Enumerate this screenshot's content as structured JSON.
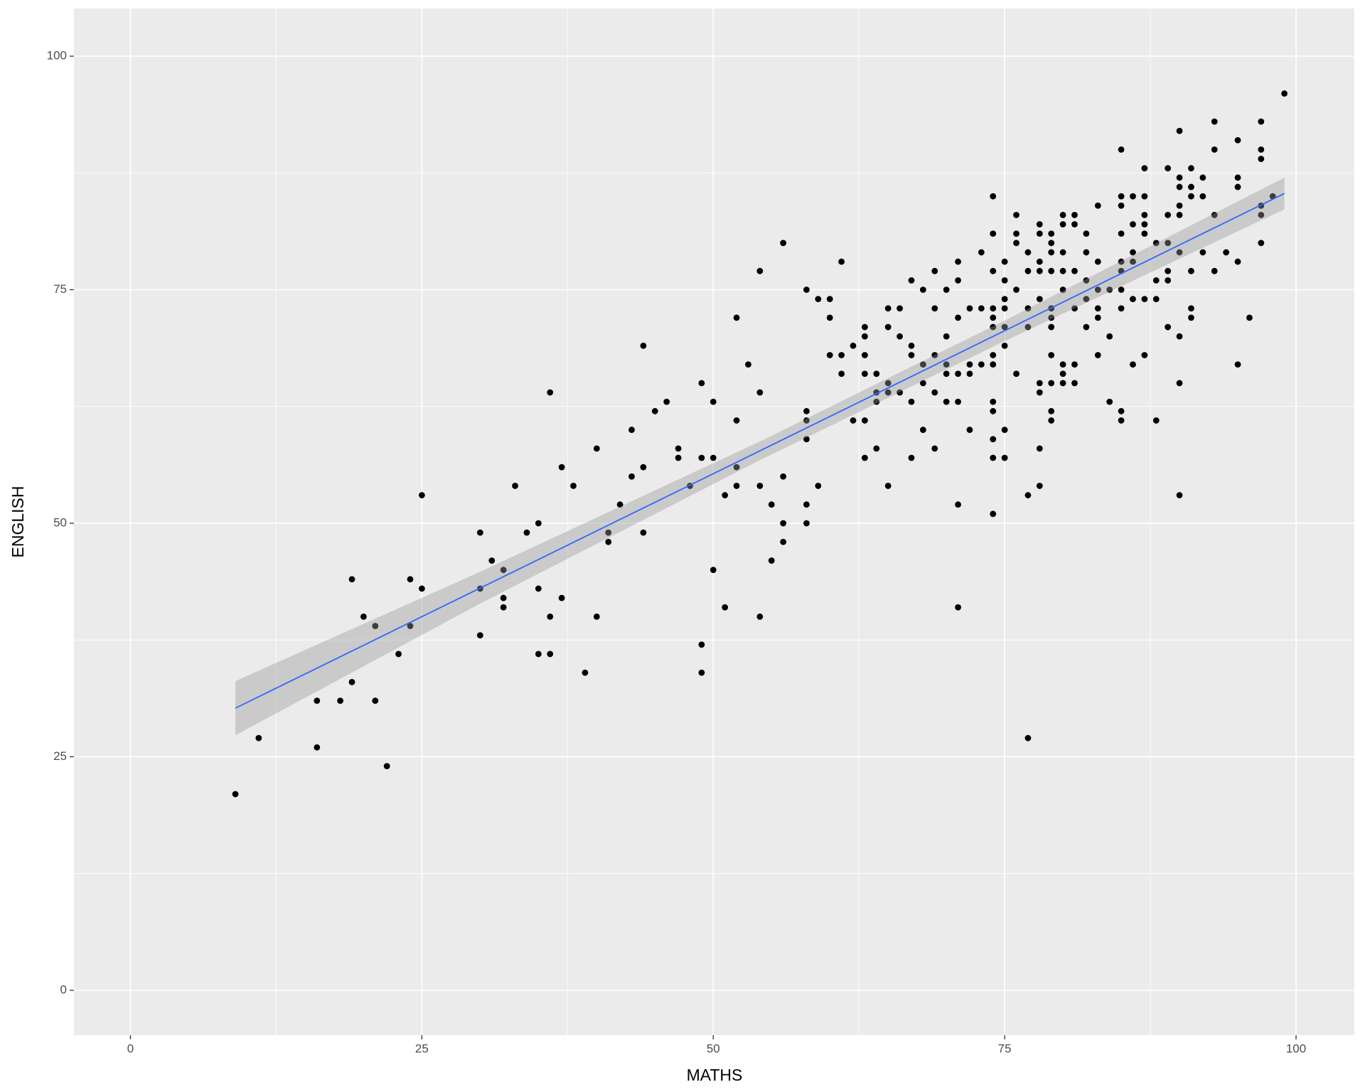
{
  "chart_data": {
    "type": "scatter",
    "x_label": "MATHS",
    "y_label": "ENGLISH",
    "x": [
      9,
      11,
      16,
      16,
      18,
      19,
      19,
      20,
      21,
      21,
      22,
      23,
      24,
      24,
      25,
      25,
      30,
      30,
      30,
      31,
      32,
      32,
      32,
      33,
      34,
      35,
      35,
      35,
      36,
      36,
      36,
      37,
      37,
      38,
      39,
      40,
      40,
      41,
      41,
      42,
      43,
      43,
      44,
      44,
      44,
      45,
      46,
      47,
      47,
      48,
      49,
      49,
      49,
      49,
      50,
      50,
      50,
      51,
      51,
      52,
      52,
      52,
      52,
      53,
      54,
      54,
      54,
      54,
      55,
      55,
      56,
      56,
      56,
      56,
      58,
      58,
      58,
      58,
      58,
      58,
      59,
      59,
      60,
      60,
      60,
      61,
      61,
      61,
      62,
      62,
      63,
      63,
      63,
      63,
      63,
      63,
      64,
      64,
      64,
      64,
      65,
      65,
      65,
      65,
      65,
      66,
      66,
      66,
      67,
      67,
      67,
      67,
      67,
      68,
      68,
      68,
      68,
      69,
      69,
      69,
      69,
      69,
      70,
      70,
      70,
      70,
      70,
      71,
      71,
      71,
      71,
      71,
      71,
      71,
      72,
      72,
      72,
      72,
      73,
      73,
      73,
      74,
      74,
      74,
      74,
      74,
      74,
      74,
      74,
      74,
      74,
      74,
      74,
      74,
      75,
      75,
      75,
      75,
      75,
      75,
      75,
      75,
      76,
      76,
      76,
      76,
      76,
      77,
      77,
      77,
      77,
      77,
      77,
      78,
      78,
      78,
      78,
      78,
      78,
      78,
      78,
      78,
      79,
      79,
      79,
      79,
      79,
      79,
      79,
      79,
      79,
      79,
      79,
      80,
      80,
      80,
      80,
      80,
      80,
      80,
      80,
      81,
      81,
      81,
      81,
      81,
      81,
      82,
      82,
      82,
      82,
      82,
      83,
      83,
      83,
      83,
      83,
      83,
      84,
      84,
      84,
      85,
      85,
      85,
      85,
      85,
      85,
      85,
      85,
      85,
      85,
      86,
      86,
      86,
      86,
      86,
      86,
      87,
      87,
      87,
      87,
      87,
      87,
      87,
      88,
      88,
      88,
      88,
      89,
      89,
      89,
      89,
      89,
      89,
      90,
      90,
      90,
      90,
      90,
      90,
      90,
      90,
      90,
      91,
      91,
      91,
      91,
      91,
      91,
      92,
      92,
      92,
      93,
      93,
      93,
      93,
      94,
      95,
      95,
      95,
      95,
      95,
      96,
      97,
      97,
      97,
      97,
      97,
      97,
      98,
      99
    ],
    "values": [
      21,
      27,
      31,
      26,
      31,
      44,
      33,
      40,
      39,
      31,
      24,
      36,
      44,
      39,
      53,
      43,
      49,
      43,
      38,
      46,
      45,
      42,
      41,
      54,
      49,
      50,
      43,
      36,
      64,
      40,
      36,
      56,
      42,
      54,
      34,
      58,
      40,
      49,
      48,
      52,
      60,
      55,
      69,
      56,
      49,
      62,
      63,
      58,
      57,
      54,
      65,
      57,
      37,
      34,
      63,
      57,
      45,
      53,
      41,
      72,
      61,
      56,
      54,
      67,
      77,
      64,
      54,
      40,
      52,
      46,
      80,
      55,
      50,
      48,
      75,
      62,
      61,
      59,
      52,
      50,
      74,
      54,
      74,
      72,
      68,
      78,
      68,
      66,
      69,
      61,
      71,
      70,
      68,
      66,
      61,
      57,
      64,
      63,
      58,
      66,
      73,
      71,
      65,
      64,
      54,
      73,
      70,
      64,
      76,
      69,
      68,
      63,
      57,
      75,
      67,
      65,
      60,
      77,
      73,
      68,
      64,
      58,
      75,
      70,
      67,
      66,
      63,
      78,
      76,
      72,
      66,
      63,
      52,
      41,
      73,
      67,
      66,
      60,
      79,
      73,
      67,
      85,
      81,
      77,
      73,
      72,
      71,
      68,
      67,
      63,
      62,
      59,
      57,
      51,
      78,
      76,
      74,
      73,
      71,
      69,
      60,
      57,
      83,
      81,
      80,
      75,
      66,
      79,
      77,
      73,
      71,
      53,
      27,
      82,
      81,
      78,
      77,
      74,
      65,
      64,
      58,
      54,
      81,
      80,
      79,
      77,
      73,
      72,
      71,
      68,
      65,
      62,
      61,
      83,
      82,
      79,
      77,
      75,
      67,
      66,
      65,
      83,
      82,
      77,
      73,
      67,
      65,
      81,
      79,
      76,
      74,
      71,
      84,
      78,
      75,
      73,
      72,
      68,
      75,
      70,
      63,
      90,
      85,
      84,
      81,
      78,
      77,
      75,
      73,
      62,
      61,
      85,
      82,
      79,
      78,
      74,
      67,
      88,
      85,
      83,
      82,
      81,
      74,
      68,
      80,
      76,
      74,
      61,
      88,
      83,
      80,
      77,
      76,
      71,
      92,
      87,
      86,
      84,
      83,
      79,
      70,
      65,
      53,
      88,
      86,
      85,
      77,
      73,
      72,
      87,
      85,
      79,
      93,
      90,
      83,
      77,
      79,
      91,
      87,
      86,
      78,
      67,
      72,
      93,
      90,
      89,
      84,
      83,
      80,
      85,
      96
    ],
    "color": "#000000",
    "fit": {
      "x": [
        9,
        99
      ],
      "values": [
        30.2,
        85.3
      ],
      "color": "#3366ff"
    },
    "band": {
      "x": [
        9,
        30,
        54,
        75,
        99
      ],
      "lower": [
        27.3,
        41.4,
        56.75,
        69.5,
        83.6
      ],
      "upper": [
        33.1,
        44.8,
        58.75,
        71.7,
        87.0
      ],
      "color": "#999999"
    },
    "xlim": [
      -4.85,
      105
    ],
    "ylim": [
      -4.8,
      105.1
    ],
    "xticks": [
      0,
      25,
      50,
      75,
      100
    ],
    "yticks": [
      0,
      25,
      50,
      75,
      100
    ],
    "xminor": [
      12.5,
      37.5,
      62.5,
      87.5
    ],
    "yminor": [
      12.5,
      37.5,
      62.5,
      87.5
    ],
    "grid": true
  }
}
